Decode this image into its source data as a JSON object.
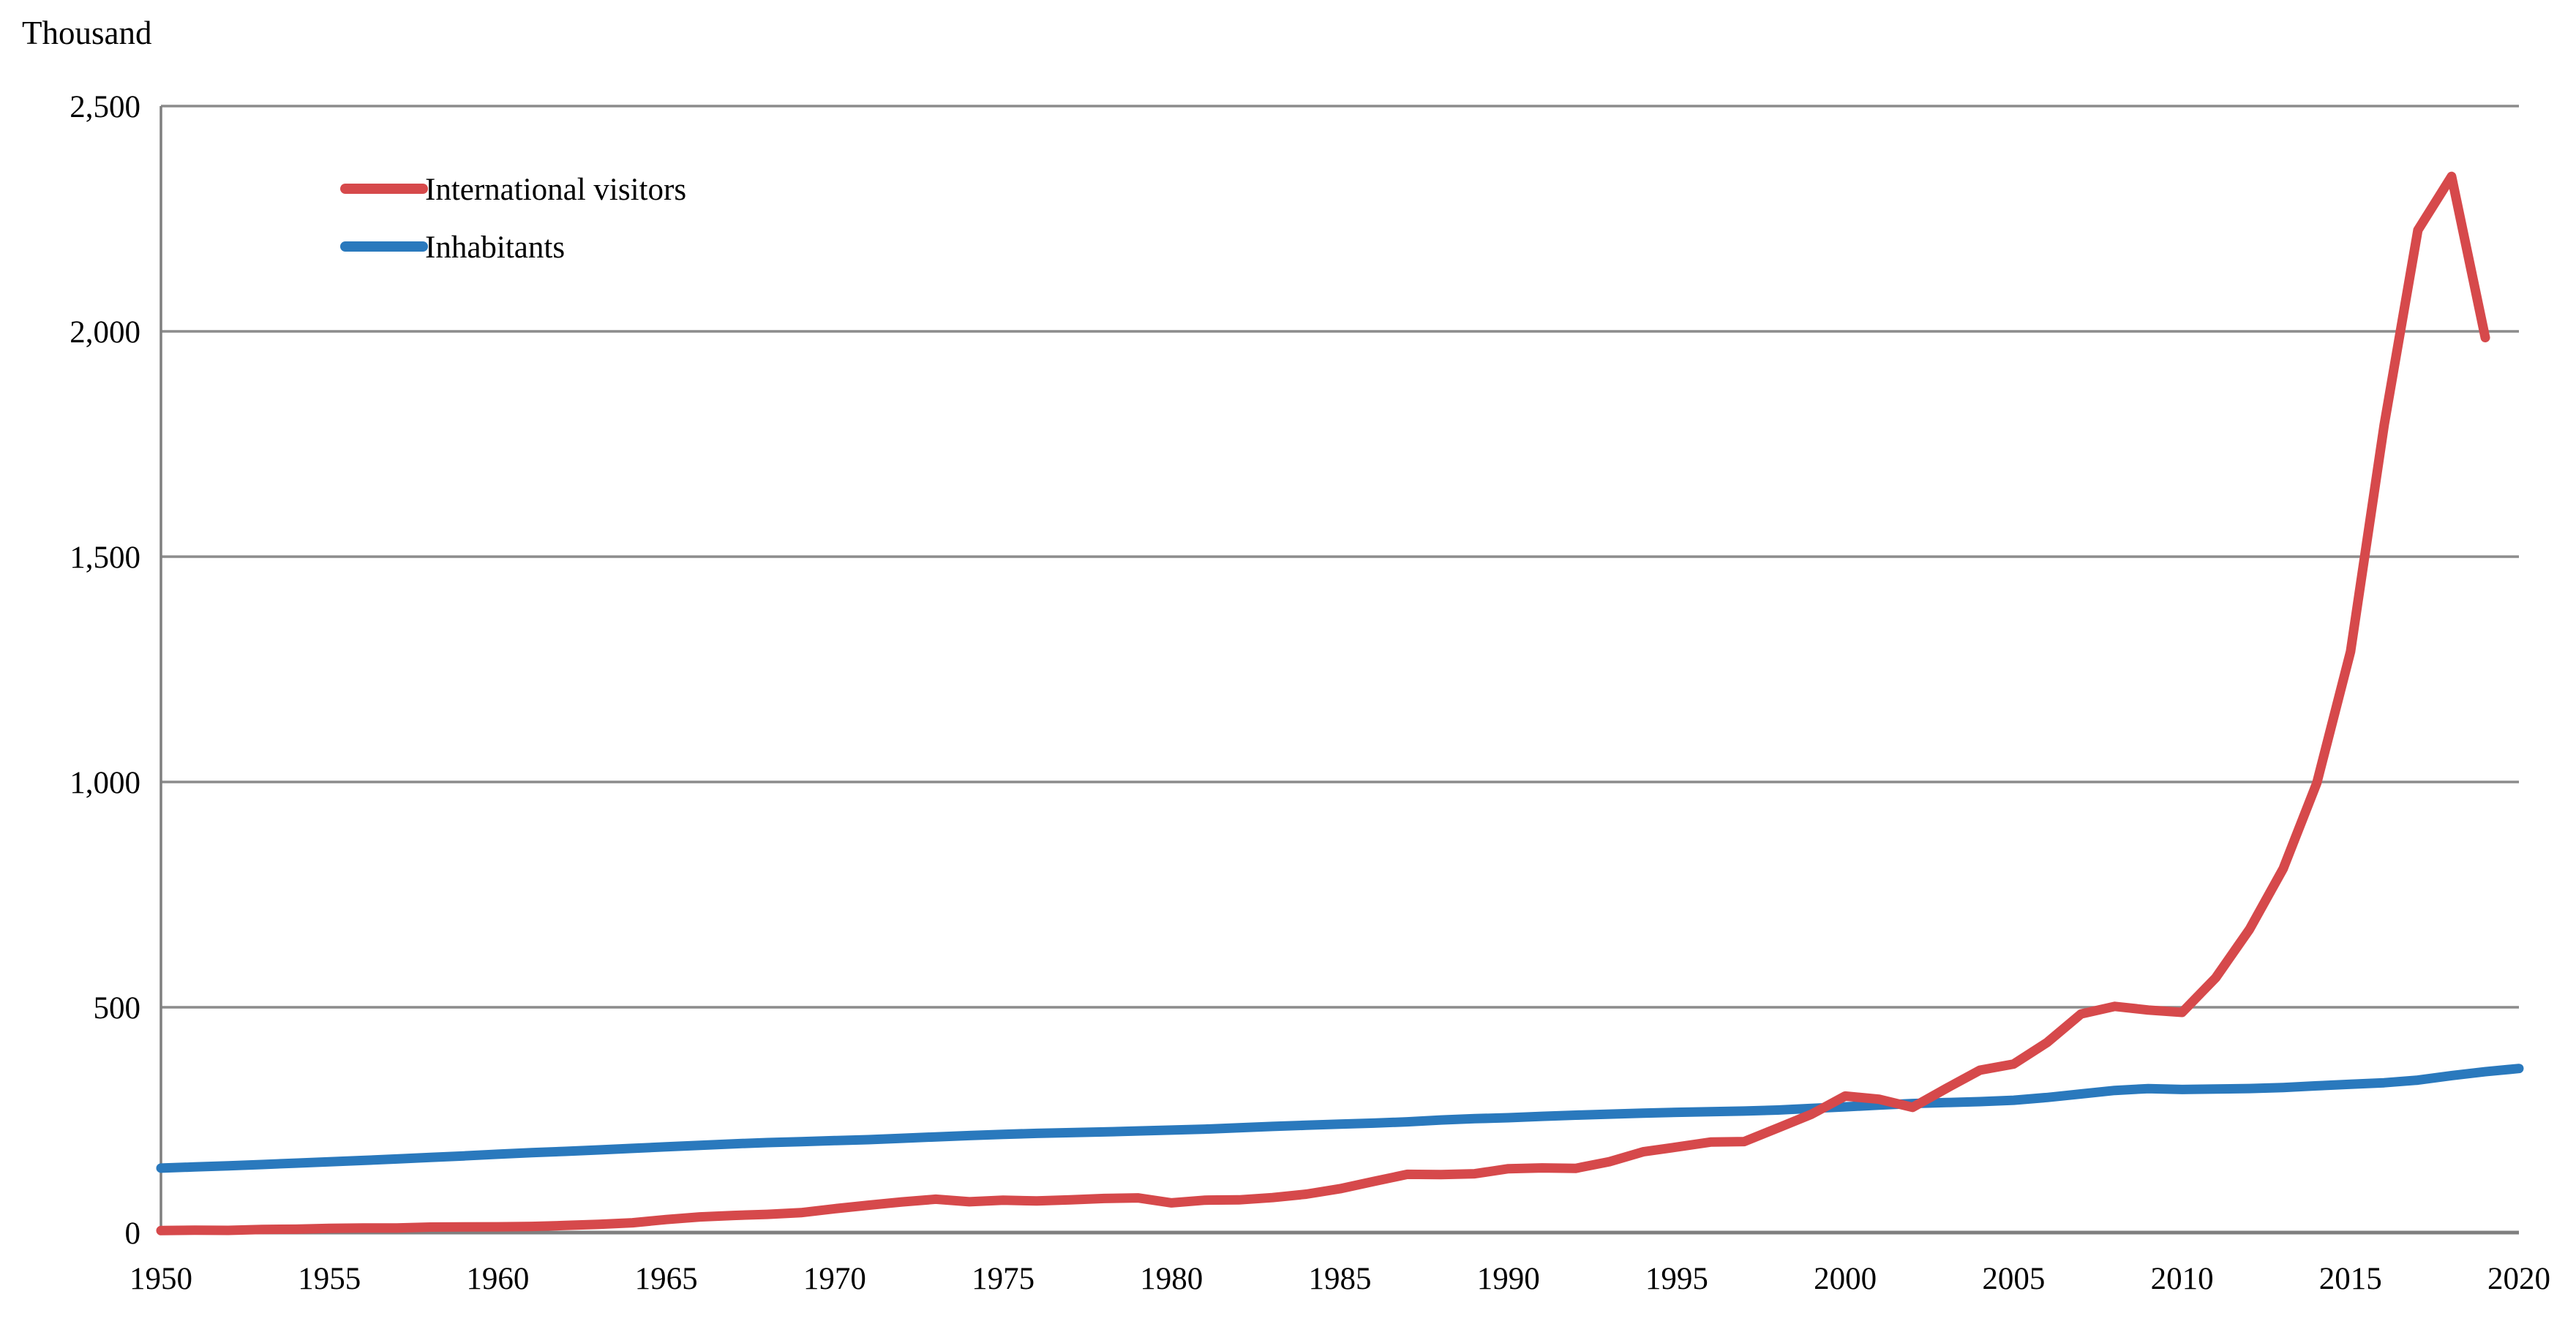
{
  "chart_data": {
    "type": "line",
    "title": "",
    "ylabel": "Thousand",
    "xlabel": "",
    "xlim": [
      1950,
      2020
    ],
    "ylim": [
      0,
      2500
    ],
    "grid": "horizontal",
    "legend_position": "top-left-inside",
    "background_color": "#FFFFFF",
    "grid_color": "#8C8C8C",
    "axis_color": "#7F7F7F",
    "text_color": "#000000",
    "x_ticks": [
      1950,
      1955,
      1960,
      1965,
      1970,
      1975,
      1980,
      1985,
      1990,
      1995,
      2000,
      2005,
      2010,
      2015,
      2020
    ],
    "y_ticks": [
      0,
      500,
      1000,
      1500,
      2000,
      2500
    ],
    "y_tick_labels": [
      "0",
      "500",
      "1,000",
      "1,500",
      "2,000",
      "2,500"
    ],
    "series": [
      {
        "name": "International visitors",
        "color": "#D6494B",
        "years": [
          1950,
          1951,
          1952,
          1953,
          1954,
          1955,
          1956,
          1957,
          1958,
          1959,
          1960,
          1961,
          1962,
          1963,
          1964,
          1965,
          1966,
          1967,
          1968,
          1969,
          1970,
          1971,
          1972,
          1973,
          1974,
          1975,
          1976,
          1977,
          1978,
          1979,
          1980,
          1981,
          1982,
          1983,
          1984,
          1985,
          1986,
          1987,
          1988,
          1989,
          1990,
          1991,
          1992,
          1993,
          1994,
          1995,
          1996,
          1997,
          1998,
          1999,
          2000,
          2001,
          2002,
          2003,
          2004,
          2005,
          2006,
          2007,
          2008,
          2009,
          2010,
          2011,
          2012,
          2013,
          2014,
          2015,
          2016,
          2017,
          2018,
          2019
        ],
        "values": [
          4.4,
          5.3,
          4.9,
          6.9,
          7.4,
          9.3,
          10.1,
          10.0,
          12.1,
          12.7,
          12.8,
          13.6,
          15.8,
          18.4,
          21.8,
          28.9,
          34.7,
          38.0,
          40.4,
          44.2,
          52.9,
          60.7,
          68.0,
          74.0,
          68.4,
          71.7,
          70.2,
          72.7,
          75.7,
          76.9,
          65.9,
          71.9,
          72.6,
          77.6,
          85.2,
          97.3,
          113.5,
          129.3,
          128.8,
          130.5,
          141.7,
          143.5,
          142.6,
          157.3,
          179.2,
          189.8,
          200.8,
          202.0,
          232.2,
          262.6,
          302.9,
          296.0,
          277.9,
          320.0,
          360.4,
          374.1,
          422.3,
          485.0,
          502.0,
          493.9,
          488.6,
          565.6,
          672.9,
          807.3,
          997.6,
          1289.1,
          1792.2,
          2224.6,
          2343.8,
          1986.2
        ]
      },
      {
        "name": "Inhabitants",
        "color": "#2A79BD",
        "years": [
          1950,
          1951,
          1952,
          1953,
          1954,
          1955,
          1956,
          1957,
          1958,
          1959,
          1960,
          1961,
          1962,
          1963,
          1964,
          1965,
          1966,
          1967,
          1968,
          1969,
          1970,
          1971,
          1972,
          1973,
          1974,
          1975,
          1976,
          1977,
          1978,
          1979,
          1980,
          1981,
          1982,
          1983,
          1984,
          1985,
          1986,
          1987,
          1988,
          1989,
          1990,
          1991,
          1992,
          1993,
          1994,
          1995,
          1996,
          1997,
          1998,
          1999,
          2000,
          2001,
          2002,
          2003,
          2004,
          2005,
          2006,
          2007,
          2008,
          2009,
          2010,
          2011,
          2012,
          2013,
          2014,
          2015,
          2016,
          2017,
          2018,
          2019,
          2020
        ],
        "values": [
          143.0,
          145.6,
          148.2,
          151.0,
          154.1,
          157.1,
          160.1,
          163.3,
          166.8,
          170.2,
          173.9,
          177.2,
          180.2,
          183.5,
          186.9,
          190.2,
          193.6,
          196.9,
          199.6,
          201.8,
          204.1,
          206.2,
          209.3,
          212.3,
          215.3,
          218.0,
          220.1,
          221.8,
          223.4,
          225.5,
          227.4,
          229.6,
          232.4,
          235.5,
          238.2,
          240.6,
          242.9,
          245.7,
          249.8,
          252.8,
          254.8,
          258.0,
          260.6,
          262.8,
          265.1,
          266.9,
          268.2,
          269.7,
          271.9,
          275.7,
          279.0,
          282.8,
          286.3,
          288.5,
          290.6,
          293.6,
          299.9,
          307.7,
          315.5,
          319.4,
          317.6,
          318.5,
          319.6,
          321.9,
          325.7,
          329.1,
          332.5,
          338.3,
          348.4,
          356.9,
          364.1
        ]
      }
    ]
  }
}
